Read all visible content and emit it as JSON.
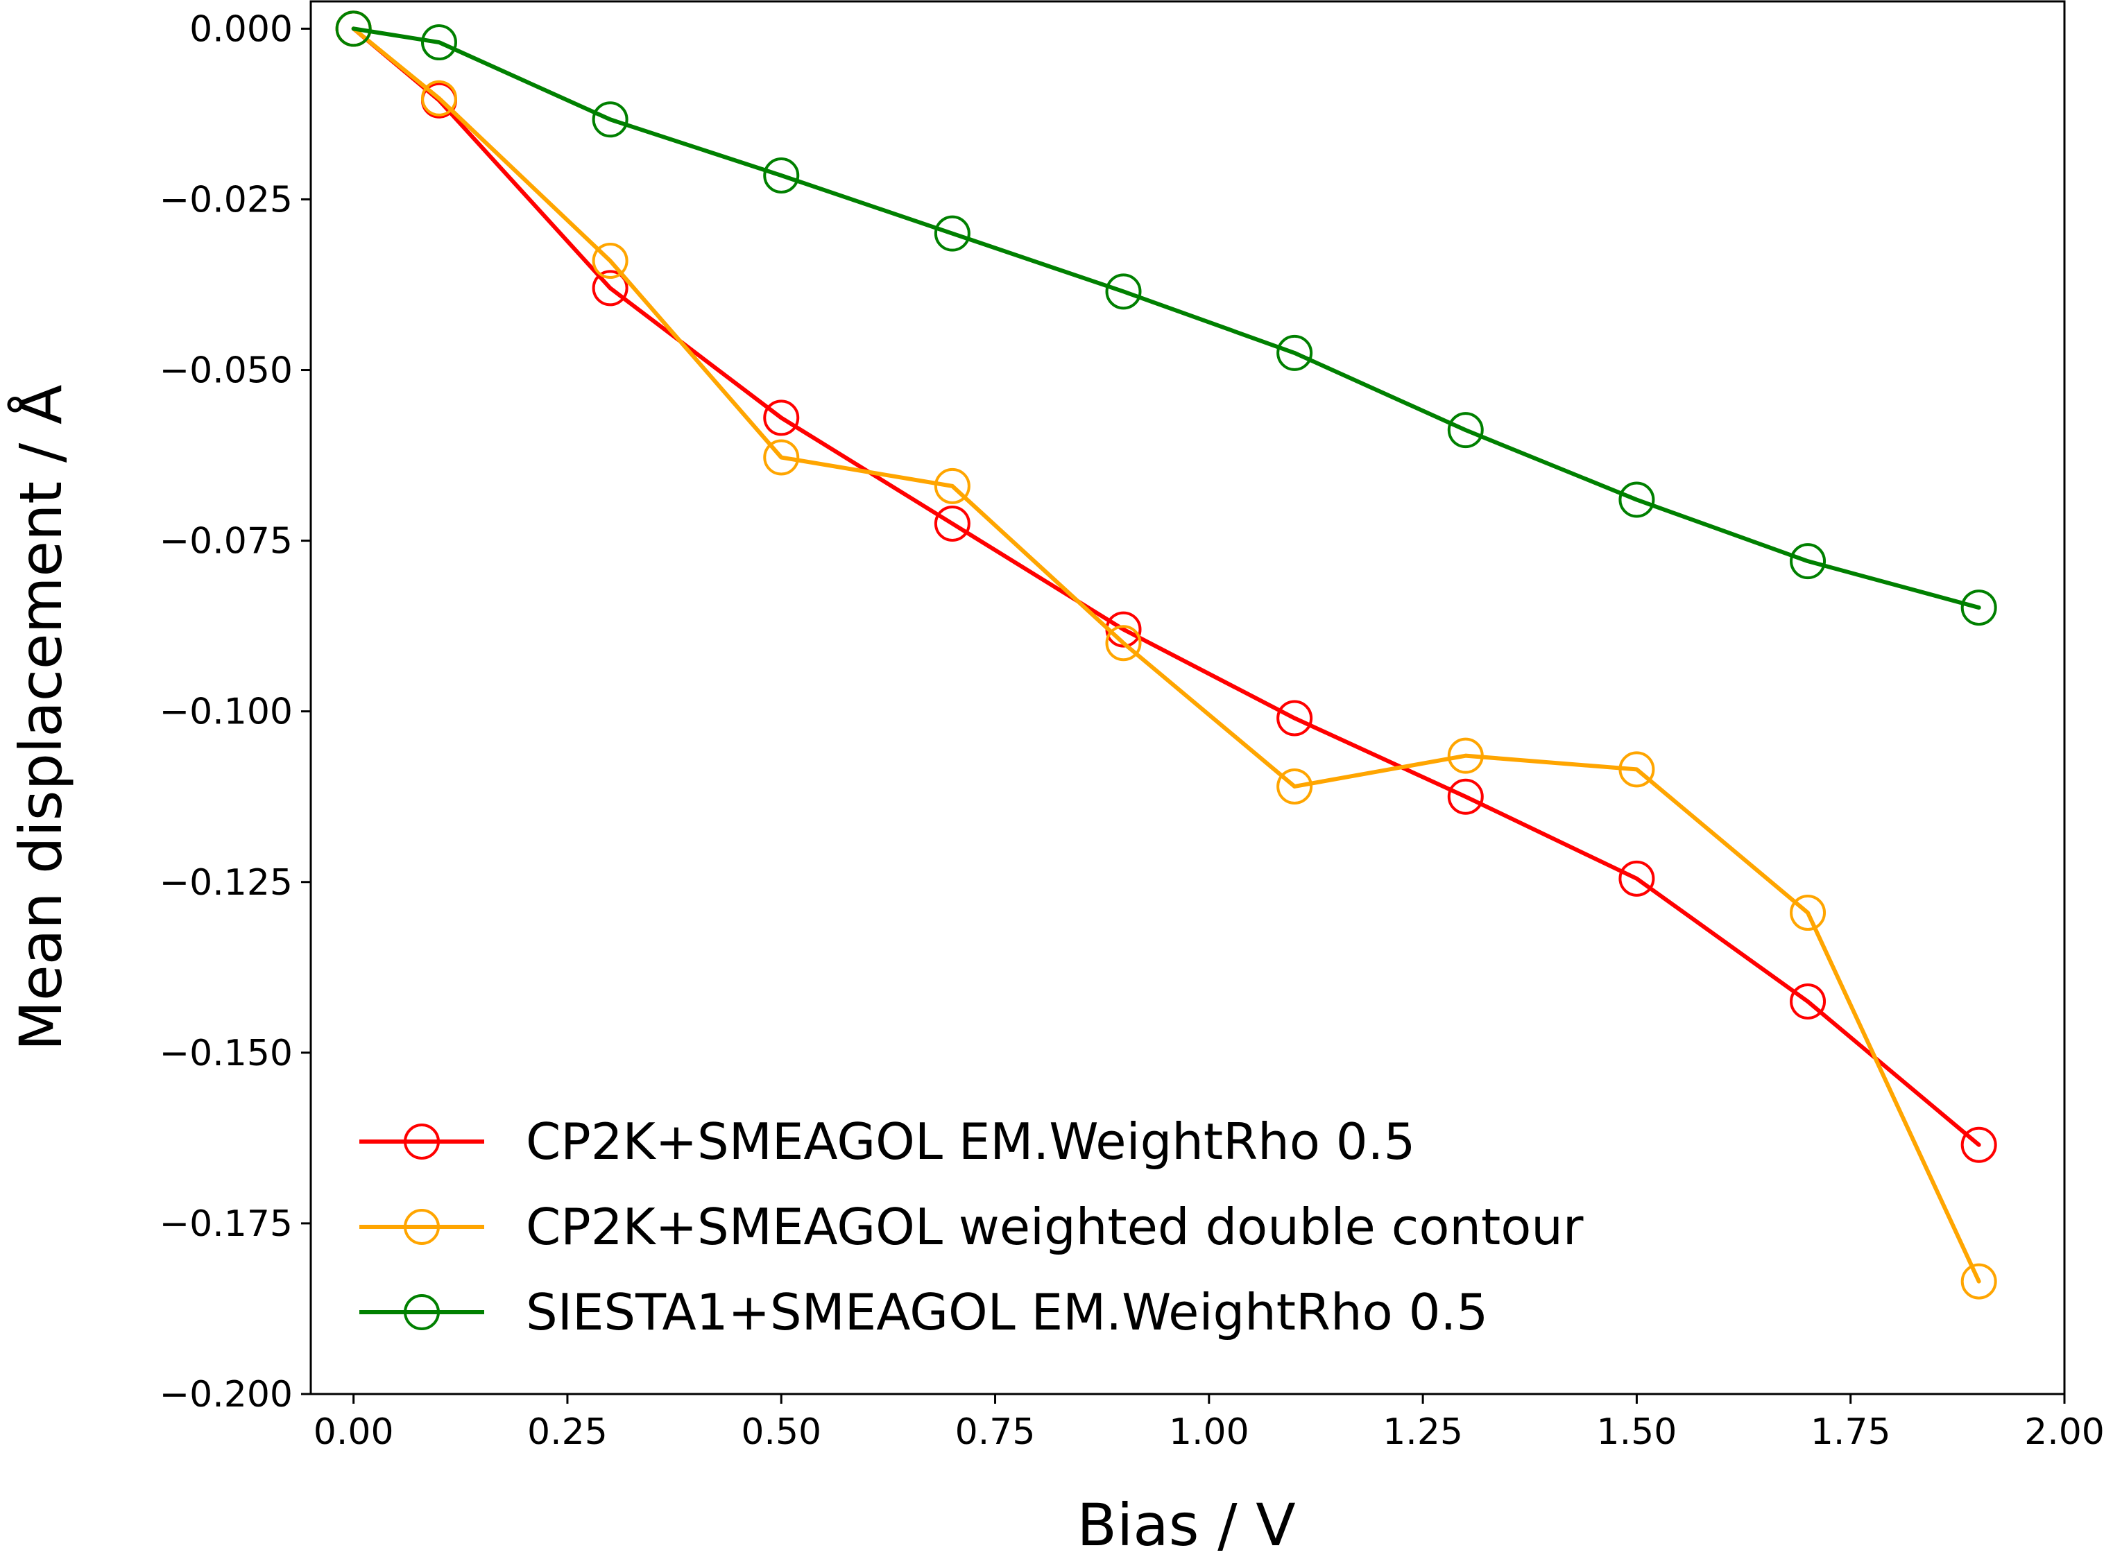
{
  "chart_data": {
    "type": "line",
    "title": "",
    "xlabel": "Bias / V",
    "ylabel": "Mean displacement / Å",
    "xlim": [
      -0.05,
      2.0
    ],
    "ylim": [
      -0.2,
      0.004
    ],
    "xticks": [
      0.0,
      0.25,
      0.5,
      0.75,
      1.0,
      1.25,
      1.5,
      1.75,
      2.0
    ],
    "xtick_labels": [
      "0.00",
      "0.25",
      "0.50",
      "0.75",
      "1.00",
      "1.25",
      "1.50",
      "1.75",
      "2.00"
    ],
    "yticks": [
      0.0,
      -0.025,
      -0.05,
      -0.075,
      -0.1,
      -0.125,
      -0.15,
      -0.175,
      -0.2
    ],
    "ytick_labels": [
      "0.000",
      "−0.025",
      "−0.050",
      "−0.075",
      "−0.100",
      "−0.125",
      "−0.150",
      "−0.175",
      "−0.200"
    ],
    "grid": false,
    "legend_position": "lower-left",
    "marker": "open-circle",
    "series": [
      {
        "name": "CP2K+SMEAGOL EM.WeightRho 0.5",
        "color": "#ff0000",
        "x": [
          0.0,
          0.1,
          0.3,
          0.5,
          0.7,
          0.9,
          1.1,
          1.3,
          1.5,
          1.7,
          1.9
        ],
        "y": [
          0.0,
          -0.0105,
          -0.038,
          -0.057,
          -0.0725,
          -0.088,
          -0.101,
          -0.1125,
          -0.1245,
          -0.1425,
          -0.1635
        ]
      },
      {
        "name": "CP2K+SMEAGOL weighted double contour",
        "color": "#ffa500",
        "x": [
          0.0,
          0.1,
          0.3,
          0.5,
          0.7,
          0.9,
          1.1,
          1.3,
          1.5,
          1.7,
          1.9
        ],
        "y": [
          0.0,
          -0.0102,
          -0.034,
          -0.0628,
          -0.067,
          -0.09,
          -0.111,
          -0.1065,
          -0.1085,
          -0.1295,
          -0.1835
        ]
      },
      {
        "name": "SIESTA1+SMEAGOL EM.WeightRho 0.5",
        "color": "#008000",
        "x": [
          0.0,
          0.1,
          0.3,
          0.5,
          0.7,
          0.9,
          1.1,
          1.3,
          1.5,
          1.7,
          1.9
        ],
        "y": [
          0.0,
          -0.002,
          -0.0133,
          -0.0215,
          -0.03,
          -0.0385,
          -0.0475,
          -0.0588,
          -0.069,
          -0.078,
          -0.0848
        ]
      }
    ]
  }
}
